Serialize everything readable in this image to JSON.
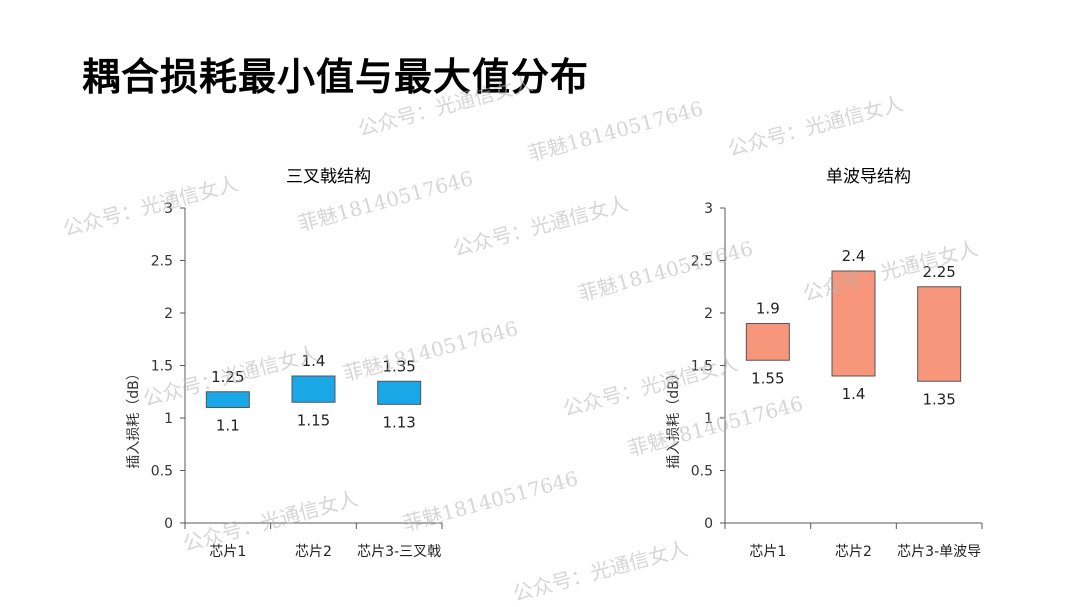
{
  "page": {
    "title": "耦合损耗最小值与最大值分布"
  },
  "watermarks": [
    "公众号：光通信女人",
    "菲魅18140517646",
    "公众号：光通信女人",
    "公众号：光通信女人",
    "菲魅18140517646",
    "公众号：光通信女人",
    "菲魅18140517646",
    "公众号：光通信女人",
    "菲魅18140517646",
    "公众号：光通信女人",
    "公众号：光通信女人",
    "菲魅18140517646",
    "菲魅18140517646",
    "公众号：光通信女人",
    "公众号：光通信女人"
  ],
  "chart_data": [
    {
      "type": "bar",
      "title": "三叉戟结构",
      "ylabel": "插入损耗（dB）",
      "ylim": [
        0,
        3
      ],
      "yticks": [
        "0",
        "0.5",
        "1",
        "1.5",
        "2",
        "2.5",
        "3"
      ],
      "categories": [
        "芯片1",
        "芯片2",
        "芯片3-三叉戟"
      ],
      "min": [
        1.1,
        1.15,
        1.13
      ],
      "max": [
        1.25,
        1.4,
        1.35
      ],
      "min_labels": [
        "1.1",
        "1.15",
        "1.13"
      ],
      "max_labels": [
        "1.25",
        "1.4",
        "1.35"
      ],
      "color": "#1aa7e8"
    },
    {
      "type": "bar",
      "title": "单波导结构",
      "ylabel": "插入损耗（dB）",
      "ylim": [
        0,
        3
      ],
      "yticks": [
        "0",
        "0.5",
        "1",
        "1.5",
        "2",
        "2.5",
        "3"
      ],
      "categories": [
        "芯片1",
        "芯片2",
        "芯片3-单波导"
      ],
      "min": [
        1.55,
        1.4,
        1.35
      ],
      "max": [
        1.9,
        2.4,
        2.25
      ],
      "min_labels": [
        "1.55",
        "1.4",
        "1.35"
      ],
      "max_labels": [
        "1.9",
        "2.4",
        "2.25"
      ],
      "color": "#f7967a"
    }
  ]
}
